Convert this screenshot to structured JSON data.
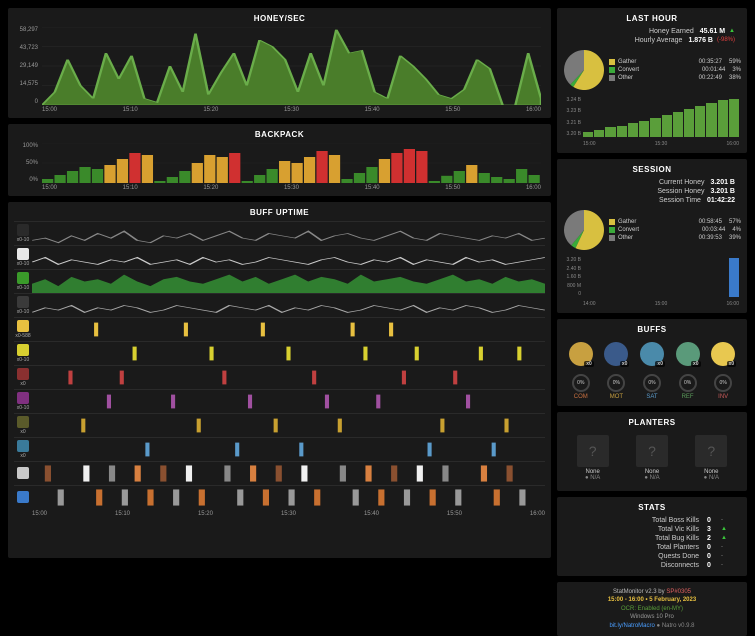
{
  "honey": {
    "title": "HONEY/SEC",
    "ylabels": [
      "58,297",
      "43,723",
      "29,149",
      "14,575",
      "0"
    ],
    "xlabels": [
      "15:00",
      "15:10",
      "15:20",
      "15:30",
      "15:40",
      "15:50",
      "16:00"
    ],
    "series": [
      [
        0,
        10,
        35,
        15,
        5,
        40,
        20,
        38,
        5,
        2,
        30,
        10,
        55,
        8,
        25,
        40,
        15,
        50,
        45,
        35,
        10,
        40,
        15,
        58,
        40,
        42,
        10,
        5,
        38,
        30,
        20,
        8,
        5,
        12,
        35,
        28,
        0,
        0,
        40,
        5
      ]
    ],
    "fill": "#4a7d2a",
    "stroke": "#6aad4a"
  },
  "backpack": {
    "title": "BACKPACK",
    "ylabels": [
      "100%",
      "50%",
      "0%"
    ],
    "xlabels": [
      "15:00",
      "15:10",
      "15:20",
      "15:30",
      "15:40",
      "15:50",
      "16:00"
    ],
    "series": [
      [
        10,
        20,
        30,
        40,
        35,
        45,
        60,
        75,
        70,
        5,
        15,
        30,
        50,
        70,
        65,
        75,
        5,
        20,
        35,
        55,
        50,
        65,
        80,
        70,
        10,
        25,
        40,
        60,
        75,
        85,
        80,
        5,
        18,
        30,
        45,
        25,
        15,
        10,
        35,
        20
      ]
    ],
    "colors_low": "#3a8a2a",
    "colors_mid": "#d8a030",
    "colors_high": "#d03030"
  },
  "buffuptime": {
    "title": "BUFF UPTIME",
    "xlabels": [
      "15:00",
      "15:10",
      "15:20",
      "15:30",
      "15:40",
      "15:50",
      "16:00"
    ],
    "rows": [
      {
        "label": "x0-10",
        "icon_bg": "#2a2a2a",
        "type": "line",
        "color": "#888",
        "data": [
          2,
          3,
          1,
          4,
          2,
          5,
          3,
          6,
          2,
          1,
          4,
          3,
          5,
          2,
          4,
          6,
          3,
          2,
          5,
          4,
          3,
          6,
          2,
          4,
          5,
          3,
          2,
          4,
          6,
          3,
          2,
          5,
          4,
          3,
          2,
          4,
          3,
          5,
          2,
          3
        ]
      },
      {
        "label": "x0-10",
        "icon_bg": "#e8e8e8",
        "type": "line",
        "color": "#ccc",
        "data": [
          3,
          5,
          2,
          4,
          3,
          2,
          4,
          3,
          5,
          2,
          3,
          4,
          2,
          5,
          3,
          4,
          2,
          3,
          5,
          4,
          3,
          2,
          4,
          5,
          3,
          2,
          4,
          3,
          5,
          2,
          4,
          3,
          2,
          5,
          3,
          4,
          2,
          3,
          4,
          5
        ]
      },
      {
        "label": "x0-10",
        "icon_bg": "#3a9a2a",
        "type": "area",
        "color": "#3aaa3a",
        "data": [
          4,
          6,
          3,
          7,
          5,
          6,
          4,
          8,
          5,
          3,
          6,
          7,
          5,
          4,
          6,
          8,
          5,
          7,
          4,
          6,
          8,
          5,
          7,
          6,
          4,
          8,
          5,
          6,
          7,
          5,
          4,
          6,
          8,
          5,
          6,
          4,
          7,
          5,
          6,
          4
        ]
      },
      {
        "label": "x0-10",
        "icon_bg": "#3a3a3a",
        "type": "line",
        "color": "#aaa",
        "data": [
          2,
          4,
          3,
          5,
          2,
          4,
          3,
          5,
          4,
          2,
          3,
          5,
          4,
          3,
          2,
          5,
          4,
          3,
          5,
          2,
          4,
          3,
          5,
          4,
          2,
          3,
          5,
          4,
          3,
          5,
          2,
          4,
          3,
          5,
          4,
          2,
          3,
          5,
          4,
          3
        ]
      },
      {
        "label": "x0-588",
        "icon_bg": "#e8c040",
        "type": "tick",
        "color": "#e8c040",
        "data": [
          5,
          0,
          12,
          0,
          18,
          0,
          0,
          25,
          0,
          28,
          0,
          0
        ]
      },
      {
        "label": "x0-10",
        "icon_bg": "#d8d030",
        "type": "tick",
        "color": "#d8d030",
        "data": [
          8,
          0,
          14,
          20,
          0,
          26,
          0,
          30,
          35,
          0,
          0,
          38
        ]
      },
      {
        "label": "x0",
        "icon_bg": "#8a3030",
        "type": "tick",
        "color": "#c04040",
        "data": [
          3,
          7,
          0,
          15,
          0,
          0,
          22,
          0,
          0,
          29,
          33,
          0
        ]
      },
      {
        "label": "x0-10",
        "icon_bg": "#803080",
        "type": "tick",
        "color": "#a050a0",
        "data": [
          0,
          6,
          11,
          0,
          17,
          0,
          23,
          0,
          27,
          0,
          34,
          0
        ]
      },
      {
        "label": "x0",
        "icon_bg": "#5a5a2a",
        "type": "tick",
        "color": "#c8a030",
        "data": [
          4,
          0,
          0,
          13,
          0,
          19,
          0,
          24,
          0,
          0,
          32,
          37
        ]
      },
      {
        "label": "x0",
        "icon_bg": "#3a7a9a",
        "type": "tick",
        "color": "#5a9aca",
        "data": [
          0,
          9,
          0,
          0,
          16,
          0,
          21,
          0,
          0,
          31,
          0,
          36
        ]
      },
      {
        "label": "",
        "icon_bg": "#c8c8c8",
        "type": "bars",
        "colors": [
          "#d88040",
          "#888",
          "#f0f0f0",
          "#8a5030"
        ],
        "data": [
          [
            1,
            3
          ],
          [
            4,
            2
          ],
          [
            6,
            1
          ],
          [
            8,
            0
          ],
          [
            10,
            3
          ],
          [
            12,
            2
          ],
          [
            15,
            1
          ],
          [
            17,
            0
          ],
          [
            19,
            3
          ],
          [
            21,
            2
          ],
          [
            24,
            1
          ],
          [
            26,
            0
          ],
          [
            28,
            3
          ],
          [
            30,
            2
          ],
          [
            32,
            1
          ],
          [
            35,
            0
          ],
          [
            37,
            3
          ]
        ]
      },
      {
        "label": "",
        "icon_bg": "#3a7aca",
        "type": "bars",
        "colors": [
          "#999",
          "#c87030"
        ],
        "data": [
          [
            2,
            0
          ],
          [
            5,
            1
          ],
          [
            7,
            0
          ],
          [
            9,
            1
          ],
          [
            11,
            0
          ],
          [
            13,
            1
          ],
          [
            16,
            0
          ],
          [
            18,
            1
          ],
          [
            20,
            0
          ],
          [
            22,
            1
          ],
          [
            25,
            0
          ],
          [
            27,
            1
          ],
          [
            29,
            0
          ],
          [
            31,
            1
          ],
          [
            33,
            0
          ],
          [
            36,
            1
          ],
          [
            38,
            0
          ]
        ]
      }
    ]
  },
  "lasthour": {
    "title": "LAST HOUR",
    "rows": [
      {
        "label": "Honey Earned",
        "value": "45.61 M",
        "ind": "▲",
        "ind_cls": "up"
      },
      {
        "label": "Hourly Average",
        "value": "1.876 B",
        "ind": "(-98%)",
        "ind_cls": "down"
      }
    ],
    "pie": [
      {
        "c": "#d8c040",
        "v": 59
      },
      {
        "c": "#3aaa3a",
        "v": 3
      },
      {
        "c": "#7a7a7a",
        "v": 38
      }
    ],
    "legend": [
      {
        "c": "#d8c040",
        "t": "Gather",
        "tm": "00:35:27",
        "p": "59%"
      },
      {
        "c": "#3aaa3a",
        "t": "Convert",
        "tm": "00:01:44",
        "p": "3%"
      },
      {
        "c": "#7a7a7a",
        "t": "Other",
        "tm": "00:22:49",
        "p": "38%"
      }
    ],
    "baryl": [
      "3.24 B",
      "3.23 B",
      "3.21 B",
      "3.20 B"
    ],
    "barxl": [
      "15:00",
      "15:30",
      "16:00"
    ],
    "bars": [
      12,
      18,
      24,
      28,
      34,
      40,
      48,
      55,
      62,
      70,
      78,
      85,
      92,
      95
    ]
  },
  "session": {
    "title": "SESSION",
    "rows": [
      {
        "label": "Current Honey",
        "value": "3.201 B"
      },
      {
        "label": "Session Honey",
        "value": "3.201 B"
      },
      {
        "label": "Session Time",
        "value": "01:42:22"
      }
    ],
    "pie": [
      {
        "c": "#d8c040",
        "v": 57
      },
      {
        "c": "#3aaa3a",
        "v": 4
      },
      {
        "c": "#7a7a7a",
        "v": 39
      }
    ],
    "legend": [
      {
        "c": "#d8c040",
        "t": "Gather",
        "tm": "00:58:45",
        "p": "57%"
      },
      {
        "c": "#3aaa3a",
        "t": "Convert",
        "tm": "00:03:44",
        "p": "4%"
      },
      {
        "c": "#7a7a7a",
        "t": "Other",
        "tm": "00:39:53",
        "p": "39%"
      }
    ],
    "baryl": [
      "3.20 B",
      "2.40 B",
      "1.60 B",
      "800 M",
      "0"
    ],
    "barxl": [
      "14:00",
      "15:00",
      "16:00"
    ],
    "bars": [
      0,
      0,
      0,
      0,
      0,
      0,
      0,
      0,
      0,
      0,
      0,
      0,
      0,
      98
    ],
    "bar_color": "#3a7aca"
  },
  "buffs": {
    "title": "BUFFS",
    "slots": [
      {
        "bg": "#c8a040",
        "cnt": "x0"
      },
      {
        "bg": "#3a5a8a",
        "cnt": "x0"
      },
      {
        "bg": "#4a8aaa",
        "cnt": "x0"
      },
      {
        "bg": "#5a9a7a",
        "cnt": "x0"
      },
      {
        "bg": "#e8c850",
        "cnt": "x0"
      }
    ],
    "pcts": [
      {
        "lab": "COM",
        "c": "#c87040"
      },
      {
        "lab": "MOT",
        "c": "#c8a040"
      },
      {
        "lab": "SAT",
        "c": "#5a9aca"
      },
      {
        "lab": "REF",
        "c": "#5a9a5a"
      },
      {
        "lab": "INV",
        "c": "#c85a5a"
      }
    ]
  },
  "planters": {
    "title": "PLANTERS",
    "slots": [
      {
        "name": "None",
        "time": "N/A"
      },
      {
        "name": "None",
        "time": "N/A"
      },
      {
        "name": "None",
        "time": "N/A"
      }
    ]
  },
  "stats": {
    "title": "STATS",
    "rows": [
      {
        "l": "Total Boss Kills",
        "v": "0",
        "ind": "-",
        "ic": "#888"
      },
      {
        "l": "Total Vic Kills",
        "v": "3",
        "ind": "▲",
        "ic": "#3ac43a"
      },
      {
        "l": "Total Bug Kills",
        "v": "2",
        "ind": "▲",
        "ic": "#3ac43a"
      },
      {
        "l": "Total Planters",
        "v": "0",
        "ind": "-",
        "ic": "#888"
      },
      {
        "l": "Quests Done",
        "v": "0",
        "ind": "-",
        "ic": "#888"
      },
      {
        "l": "Disconnects",
        "v": "0",
        "ind": "-",
        "ic": "#888"
      }
    ]
  },
  "footer": {
    "app": "StatMonitor v2.3 by",
    "author": "SP#0305",
    "time": "15:00 - 16:00 • 5 February, 2023",
    "ocr": "OCR: Enabled (en-MY)",
    "os": "Windows 10 Pro",
    "link": "bit.ly/NatroMacro",
    "ver": "Natro v0.9.8"
  }
}
